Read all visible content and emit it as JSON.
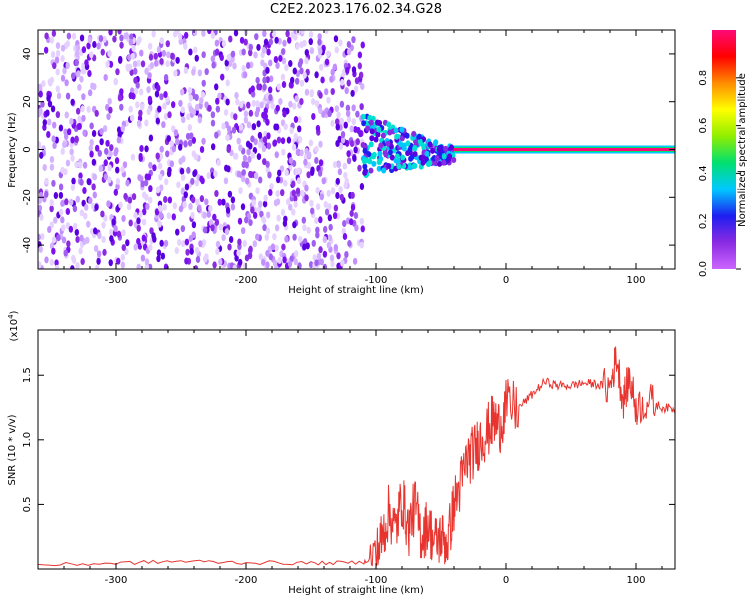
{
  "title": "C2E2.2023.176.02.34.G28",
  "colors": {
    "snr_line": "#e8342e",
    "cb_stops": [
      "#cc66ff",
      "#8a2be2",
      "#1e1ef0",
      "#00c8ff",
      "#00e070",
      "#90ee00",
      "#ffff00",
      "#ff8c00",
      "#ff0000",
      "#ff0a78"
    ]
  },
  "chart_data": [
    {
      "type": "heatmap",
      "xlabel": "Height of straight line (km)",
      "ylabel": "Frequency (Hz)",
      "xlim": [
        -360,
        130
      ],
      "ylim": [
        -50,
        50
      ],
      "x_ticks": [
        -300,
        -200,
        -100,
        0,
        100
      ],
      "y_ticks": [
        -40,
        -20,
        0,
        20,
        40
      ],
      "colorbar": {
        "label": "Normalized spectral amplitude",
        "range": [
          0,
          1
        ],
        "ticks": [
          "0.0",
          "0.2",
          "0.4",
          "0.6",
          "0.8"
        ]
      },
      "features": {
        "noise_region_x": [
          -360,
          -110
        ],
        "tone_start_x": -40,
        "tone_frequency": 0
      },
      "grid": false
    },
    {
      "type": "line",
      "xlabel": "Height of straight line (km)",
      "ylabel": "SNR (10 * v/v)",
      "y_multiplier": "(x10",
      "y_multiplier_exp": "4",
      "y_multiplier_close": ")",
      "xlim": [
        -360,
        130
      ],
      "ylim": [
        0,
        18500
      ],
      "x_ticks": [
        -300,
        -200,
        -100,
        0,
        100
      ],
      "y_ticks": [
        "0.5",
        "1.0",
        "1.5"
      ],
      "y_tick_values": [
        5000,
        10000,
        15000
      ],
      "series": [
        {
          "x": [
            -360,
            -300,
            -250,
            -200,
            -150,
            -110,
            -100,
            -95,
            -90,
            -85,
            -80,
            -75,
            -70,
            -65,
            -60,
            -55,
            -50,
            -45,
            -40,
            -35,
            -30,
            -25,
            -20,
            -15,
            -10,
            -5,
            0,
            10,
            20,
            30,
            40,
            50,
            60,
            70,
            80,
            85,
            90,
            95,
            100,
            110,
            120,
            130
          ],
          "y": [
            300,
            450,
            600,
            500,
            450,
            500,
            1000,
            2500,
            4500,
            3000,
            5500,
            3000,
            5000,
            2500,
            3500,
            2000,
            2500,
            2000,
            5000,
            6500,
            8500,
            9000,
            10000,
            10500,
            11500,
            11000,
            12500,
            12500,
            13500,
            14500,
            14200,
            14200,
            14400,
            14300,
            14000,
            16500,
            13000,
            14800,
            12500,
            13000,
            12500,
            12400
          ]
        }
      ]
    }
  ]
}
